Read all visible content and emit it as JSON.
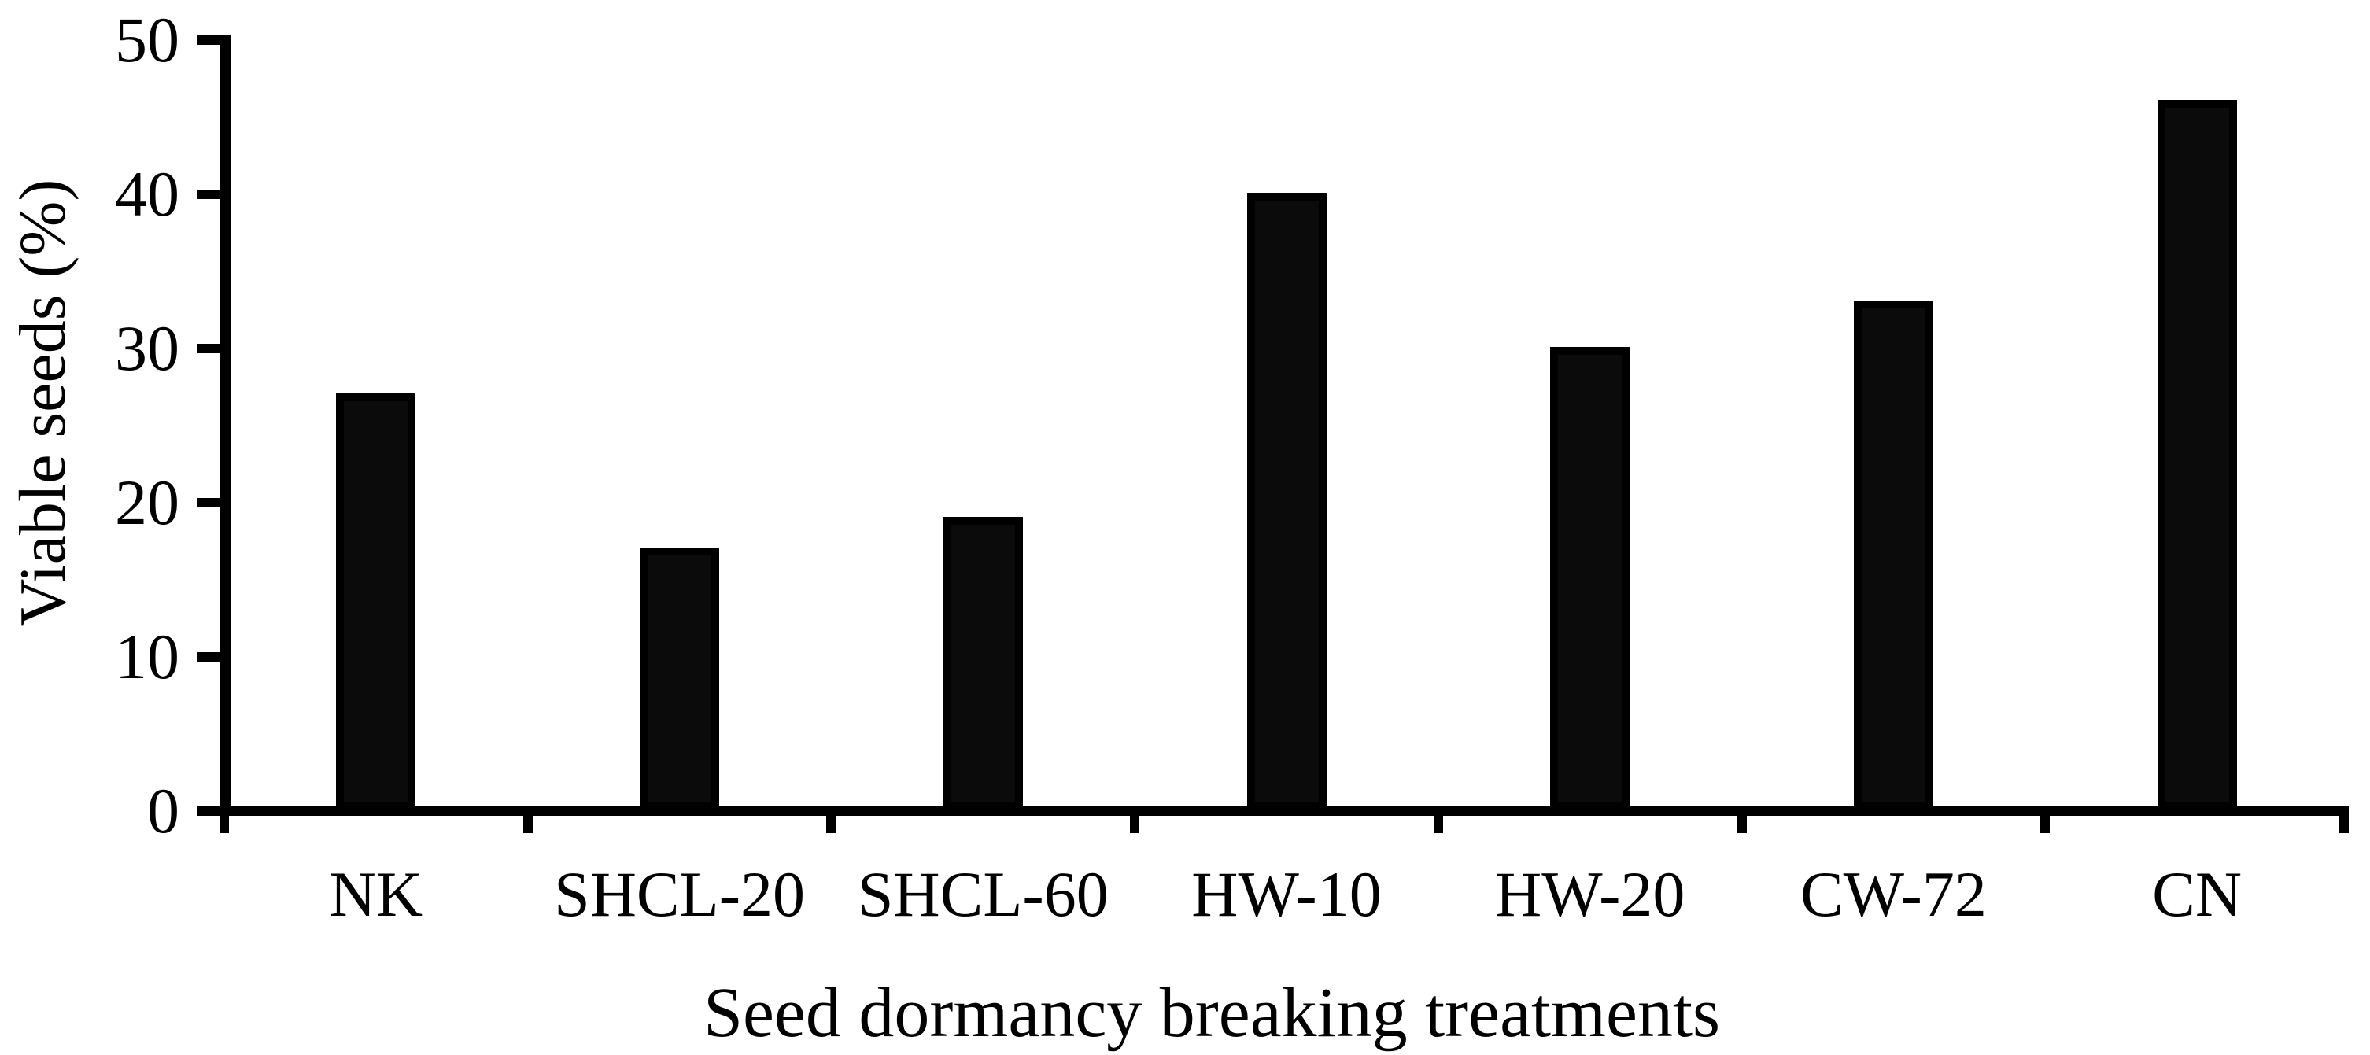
{
  "figure": {
    "background": "#ffffff",
    "text_color": "#000000"
  },
  "chart_data": {
    "type": "bar",
    "title": "",
    "xlabel": "Seed dormancy breaking treatments",
    "ylabel": "Viable seeds (%)",
    "categories": [
      "NK",
      "SHCL-20",
      "SHCL-60",
      "HW-10",
      "HW-20",
      "CW-72",
      "CN"
    ],
    "values": [
      27,
      17,
      19,
      40,
      30,
      33,
      46
    ],
    "ylim": [
      0,
      50
    ],
    "yticks": [
      0,
      10,
      20,
      30,
      40,
      50
    ],
    "grid": false,
    "legend": "none",
    "bar_color": "#0b0b0b",
    "bar_border_color": "#000000",
    "axis_color": "#000000"
  }
}
